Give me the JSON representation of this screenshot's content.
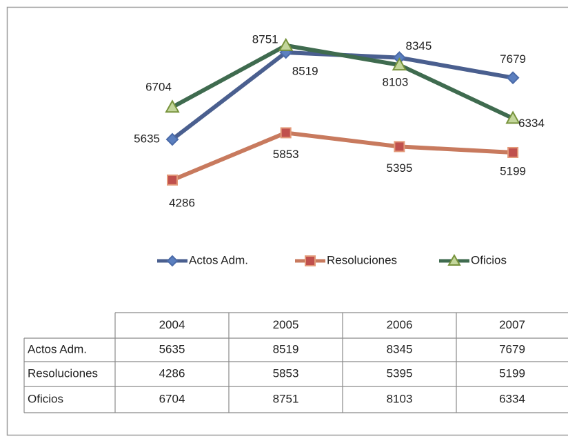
{
  "chart_data": {
    "type": "line",
    "categories": [
      "2004",
      "2005",
      "2006",
      "2007"
    ],
    "series": [
      {
        "name": "Actos Adm.",
        "color": "#4a5f8f",
        "values": [
          5635,
          8519,
          8345,
          7679
        ]
      },
      {
        "name": "Resoluciones",
        "color": "#c87a5e",
        "values": [
          4286,
          5853,
          5395,
          5199
        ]
      },
      {
        "name": "Oficios",
        "color": "#3f6b4f",
        "values": [
          6704,
          8751,
          8103,
          6334
        ]
      }
    ],
    "ylim": [
      3000,
      9000
    ],
    "legend": "bottom",
    "data_table": true
  }
}
